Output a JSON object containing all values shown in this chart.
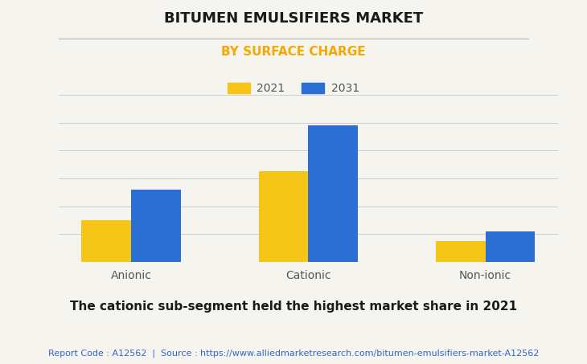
{
  "title": "BITUMEN EMULSIFIERS MARKET",
  "subtitle": "BY SURFACE CHARGE",
  "subtitle_color": "#F5A800",
  "categories": [
    "Anionic",
    "Cationic",
    "Non-ionic"
  ],
  "values_2021": [
    3.0,
    6.5,
    1.5
  ],
  "values_2031": [
    5.2,
    9.8,
    2.2
  ],
  "color_2021": "#F5C518",
  "color_2031": "#2B6FD4",
  "legend_labels": [
    "2021",
    "2031"
  ],
  "background_color": "#F5F4EE",
  "plot_bg_color": "#F5F4EE",
  "grid_color": "#CCCCCC",
  "bar_width": 0.28,
  "ylim": [
    0,
    12
  ],
  "bottom_note": "The cationic sub-segment held the highest market share in 2021",
  "footer_text": "Report Code : A12562  |  Source : https://www.alliedmarketresearch.com/bitumen-emulsifiers-market-A12562",
  "footer_color": "#3366CC",
  "title_fontsize": 13,
  "subtitle_fontsize": 11,
  "note_fontsize": 11,
  "footer_fontsize": 8,
  "tick_fontsize": 10
}
